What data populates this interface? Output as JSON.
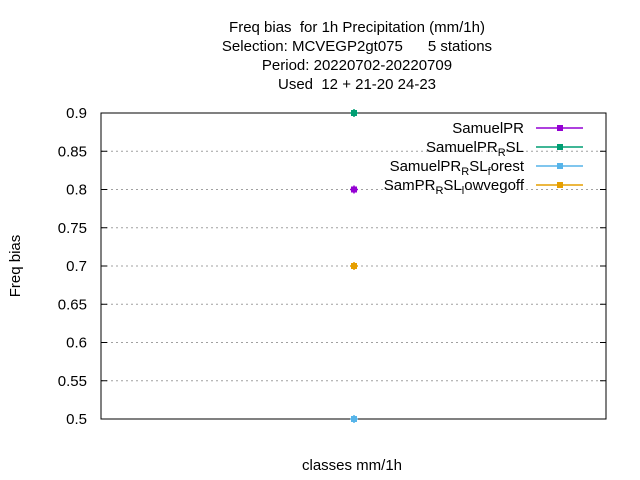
{
  "chart_data": {
    "type": "scatter",
    "title_lines": [
      "Freq bias  for 1h Precipitation (mm/1h)",
      "Selection: MCVEGP2gt075      5 stations",
      "Period: 20220702-20220709",
      "Used  12 + 21-20 24-23"
    ],
    "xlabel": "classes mm/1h",
    "ylabel": "Freq bias",
    "ylim": [
      0.5,
      0.9
    ],
    "yticks": [
      "0.5",
      "0.55",
      "0.6",
      "0.65",
      "0.7",
      "0.75",
      "0.8",
      "0.85",
      "0.9"
    ],
    "grid": true,
    "legend_position": "top-right",
    "series": [
      {
        "legend_main": "SamuelPR",
        "legend_sub": "",
        "legend_tail": "",
        "color": "#9400d3",
        "points": [
          {
            "y": 0.8
          }
        ]
      },
      {
        "legend_main": "SamuelPR",
        "legend_sub": "R",
        "legend_tail": "SL",
        "color": "#009e73",
        "points": [
          {
            "y": 0.9
          }
        ]
      },
      {
        "legend_main": "SamuelPR",
        "legend_sub": "R",
        "legend_tail": "SL",
        "legend_sub2": "f",
        "legend_tail2": "orest",
        "color": "#56b4e9",
        "points": [
          {
            "y": 0.5
          }
        ]
      },
      {
        "legend_main": "SamPR",
        "legend_sub": "R",
        "legend_tail": "SL",
        "legend_sub2": "l",
        "legend_tail2": "owvegoff",
        "color": "#e69f00",
        "points": [
          {
            "y": 0.7
          }
        ]
      }
    ]
  }
}
